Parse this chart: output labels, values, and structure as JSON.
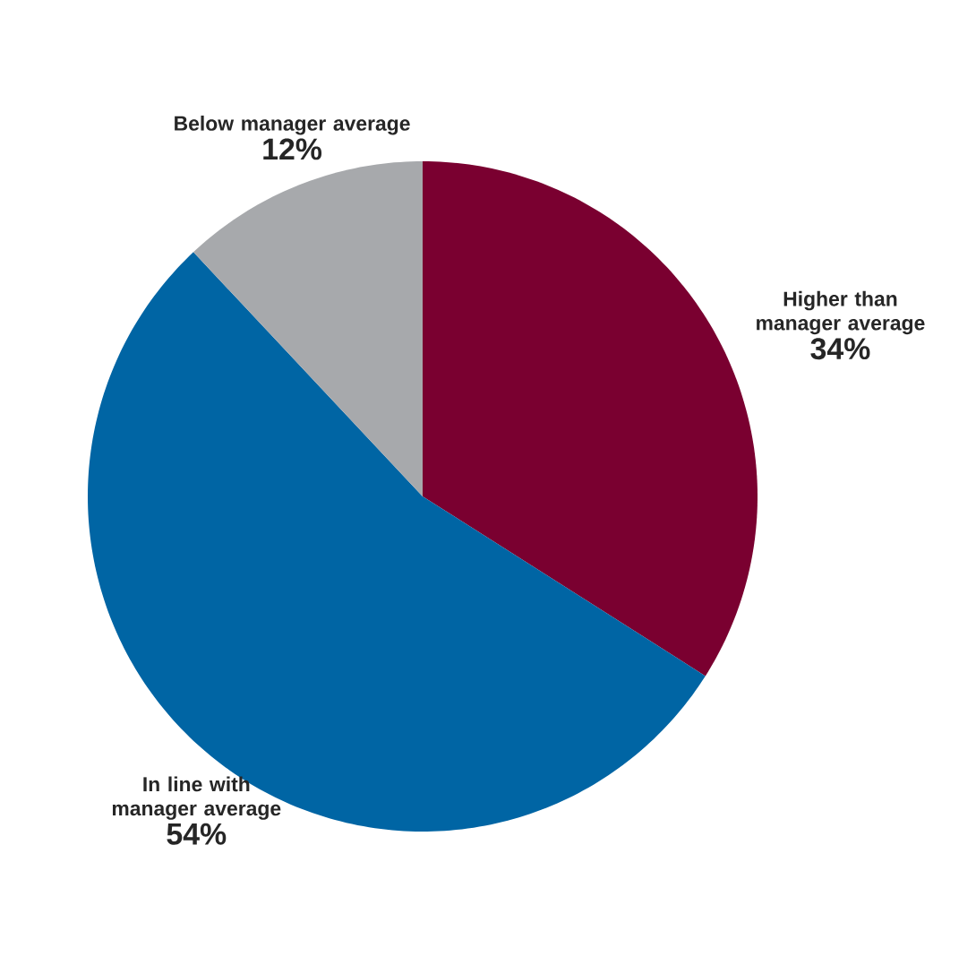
{
  "chart_data": {
    "type": "pie",
    "categories": [
      "Higher than manager average",
      "In line with manager average",
      "Below manager average"
    ],
    "values": [
      34,
      54,
      12
    ],
    "colors": [
      "#7a0030",
      "#0065a4",
      "#a7a9ac"
    ],
    "value_labels": [
      "34%",
      "54%",
      "12%"
    ]
  }
}
